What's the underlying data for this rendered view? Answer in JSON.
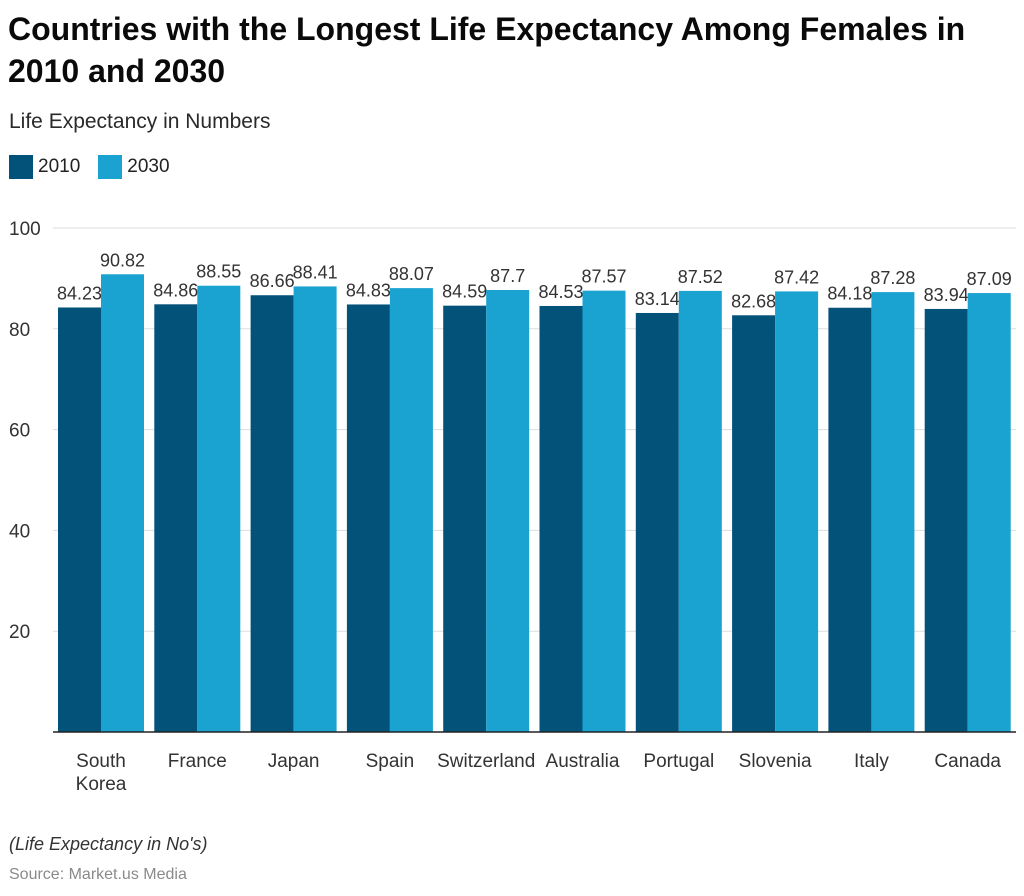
{
  "chart_data": {
    "type": "bar",
    "title": "Countries with the Longest Life Expectancy Among Females in 2010 and 2030",
    "subtitle": "Life Expectancy in Numbers",
    "categories": [
      "South Korea",
      "France",
      "Japan",
      "Spain",
      "Switzerland",
      "Australia",
      "Portugal",
      "Slovenia",
      "Italy",
      "Canada"
    ],
    "series": [
      {
        "name": "2010",
        "color": "#03527a",
        "values": [
          84.23,
          84.86,
          86.66,
          84.83,
          84.59,
          84.53,
          83.14,
          82.68,
          84.18,
          83.94
        ]
      },
      {
        "name": "2030",
        "color": "#1aa3d0",
        "values": [
          90.82,
          88.55,
          88.41,
          88.07,
          87.7,
          87.57,
          87.52,
          87.42,
          87.28,
          87.09
        ]
      }
    ],
    "ylim": [
      0,
      100
    ],
    "yticks": [
      20,
      40,
      60,
      80,
      100
    ],
    "grid": true,
    "legend_position": "top-left",
    "xlabel": "",
    "ylabel": "",
    "gridline_color": "#dddddd",
    "axis_color": "#222222"
  },
  "footer": {
    "note": "(Life Expectancy in No's)",
    "source": "Source: Market.us Media"
  }
}
